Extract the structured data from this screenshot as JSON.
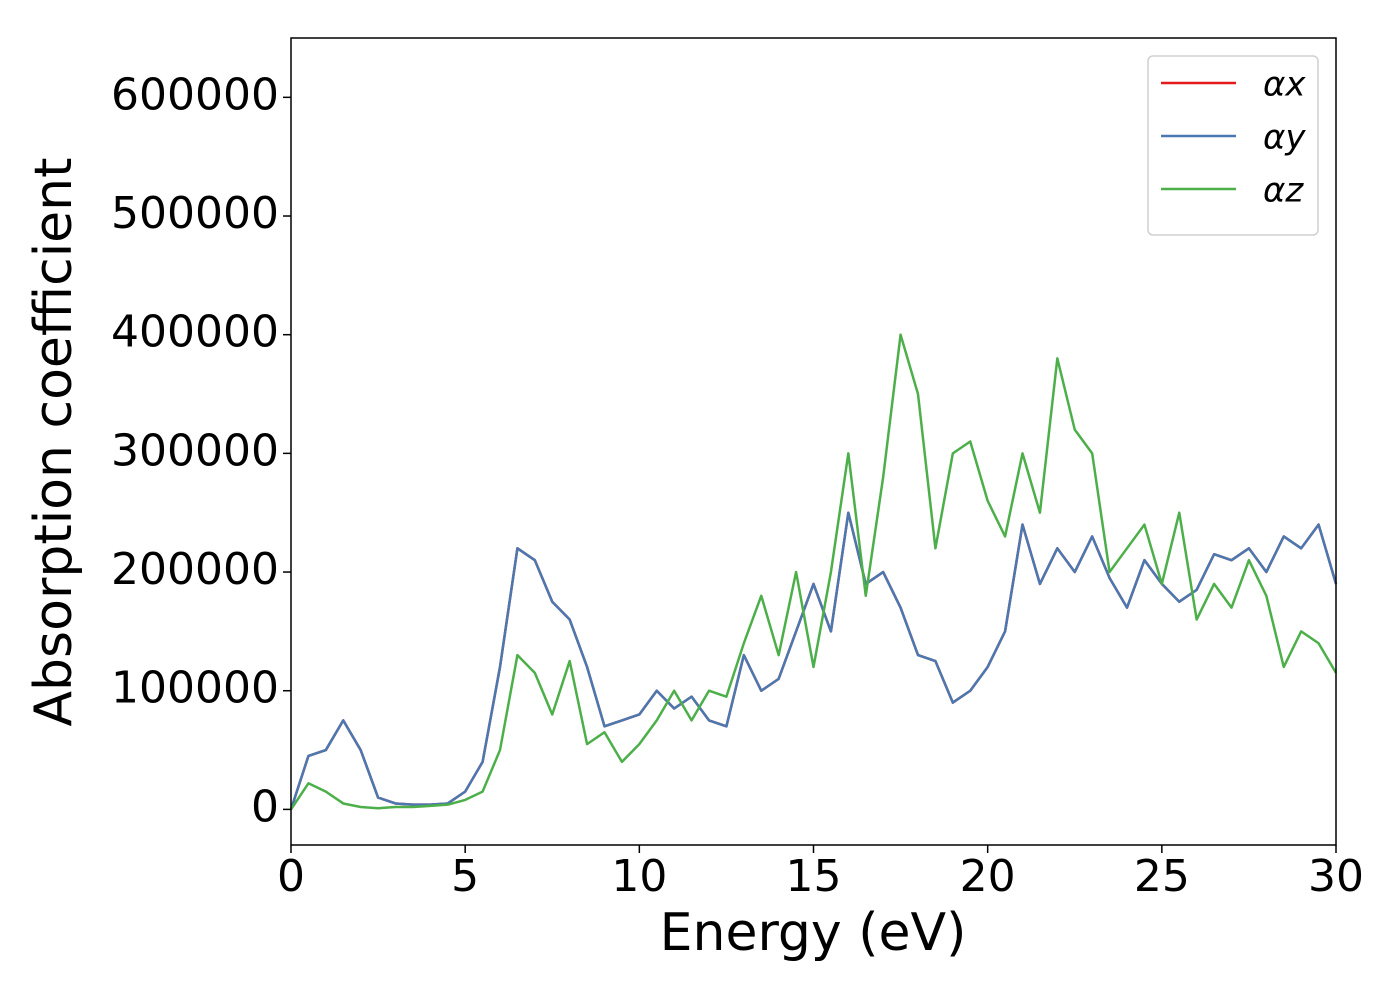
{
  "chart_data": {
    "type": "line",
    "xlabel": "Energy (eV)",
    "ylabel": "Absorption coefficient",
    "x": [
      0,
      0.5,
      1,
      1.5,
      2,
      2.5,
      3,
      3.5,
      4,
      4.5,
      5,
      5.5,
      6,
      6.5,
      7,
      7.5,
      8,
      8.5,
      9,
      9.5,
      10,
      10.5,
      11,
      11.5,
      12,
      12.5,
      13,
      13.5,
      14,
      14.5,
      15,
      15.5,
      16,
      16.5,
      17,
      17.5,
      18,
      18.5,
      19,
      19.5,
      20,
      20.5,
      21,
      21.5,
      22,
      22.5,
      23,
      23.5,
      24,
      24.5,
      25,
      25.5,
      26,
      26.5,
      27,
      27.5,
      28,
      28.5,
      29,
      29.5,
      30
    ],
    "series": [
      {
        "name": "αx",
        "color": "#e41a1c",
        "values": [
          0,
          45000,
          50000,
          75000,
          50000,
          10000,
          5000,
          4000,
          4000,
          5000,
          15000,
          40000,
          120000,
          220000,
          210000,
          175000,
          160000,
          120000,
          70000,
          75000,
          80000,
          100000,
          85000,
          95000,
          75000,
          70000,
          130000,
          100000,
          110000,
          150000,
          190000,
          150000,
          250000,
          190000,
          200000,
          170000,
          130000,
          125000,
          90000,
          100000,
          120000,
          150000,
          240000,
          190000,
          220000,
          200000,
          230000,
          195000,
          170000,
          210000,
          190000,
          175000,
          185000,
          215000,
          210000,
          220000,
          200000,
          230000,
          220000,
          240000,
          190000
        ]
      },
      {
        "name": "αy",
        "color": "#4a78b0",
        "values": [
          0,
          45000,
          50000,
          75000,
          50000,
          10000,
          5000,
          4000,
          4000,
          5000,
          15000,
          40000,
          120000,
          220000,
          210000,
          175000,
          160000,
          120000,
          70000,
          75000,
          80000,
          100000,
          85000,
          95000,
          75000,
          70000,
          130000,
          100000,
          110000,
          150000,
          190000,
          150000,
          250000,
          190000,
          200000,
          170000,
          130000,
          125000,
          90000,
          100000,
          120000,
          150000,
          240000,
          190000,
          220000,
          200000,
          230000,
          195000,
          170000,
          210000,
          190000,
          175000,
          185000,
          215000,
          210000,
          220000,
          200000,
          230000,
          220000,
          240000,
          190000
        ]
      },
      {
        "name": "αz",
        "color": "#4daf4a",
        "values": [
          0,
          22000,
          15000,
          5000,
          2000,
          1000,
          2000,
          2000,
          3000,
          4000,
          8000,
          15000,
          50000,
          130000,
          115000,
          80000,
          125000,
          55000,
          65000,
          40000,
          55000,
          75000,
          100000,
          75000,
          100000,
          95000,
          140000,
          180000,
          130000,
          200000,
          120000,
          200000,
          300000,
          180000,
          280000,
          400000,
          350000,
          220000,
          300000,
          310000,
          260000,
          230000,
          300000,
          250000,
          380000,
          320000,
          300000,
          200000,
          220000,
          240000,
          190000,
          250000,
          160000,
          190000,
          170000,
          210000,
          180000,
          120000,
          150000,
          140000,
          115000
        ]
      }
    ],
    "xlim": [
      0,
      30
    ],
    "xticks": [
      0,
      5,
      10,
      15,
      20,
      25,
      30
    ],
    "ylim": [
      -30000,
      650000
    ],
    "yticks": [
      0,
      100000,
      200000,
      300000,
      400000,
      500000,
      600000
    ],
    "grid": false,
    "legend": "upper right"
  }
}
